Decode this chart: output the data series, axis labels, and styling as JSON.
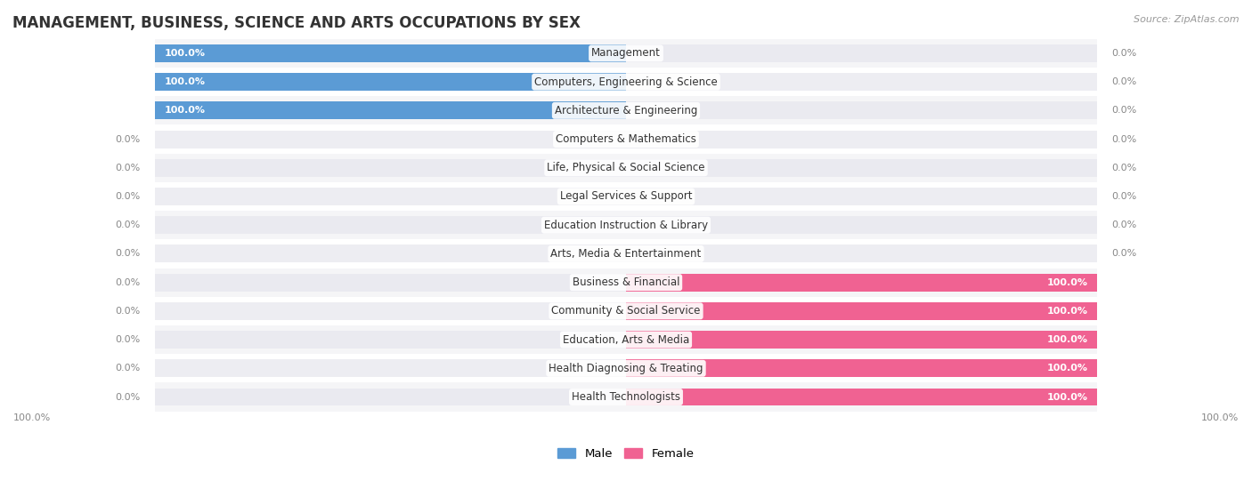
{
  "title": "MANAGEMENT, BUSINESS, SCIENCE AND ARTS OCCUPATIONS BY SEX",
  "source": "Source: ZipAtlas.com",
  "categories": [
    "Management",
    "Computers, Engineering & Science",
    "Architecture & Engineering",
    "Computers & Mathematics",
    "Life, Physical & Social Science",
    "Legal Services & Support",
    "Education Instruction & Library",
    "Arts, Media & Entertainment",
    "Business & Financial",
    "Community & Social Service",
    "Education, Arts & Media",
    "Health Diagnosing & Treating",
    "Health Technologists"
  ],
  "male_values": [
    100.0,
    100.0,
    100.0,
    0.0,
    0.0,
    0.0,
    0.0,
    0.0,
    0.0,
    0.0,
    0.0,
    0.0,
    0.0
  ],
  "female_values": [
    0.0,
    0.0,
    0.0,
    0.0,
    0.0,
    0.0,
    0.0,
    0.0,
    100.0,
    100.0,
    100.0,
    100.0,
    100.0
  ],
  "male_color": "#5b9bd5",
  "female_color": "#f06292",
  "bar_bg_color_even": "#eaeaf0",
  "bar_bg_color_odd": "#ededf2",
  "row_bg_even": "#f5f5f7",
  "row_bg_odd": "#ffffff",
  "title_fontsize": 12,
  "category_fontsize": 8.5,
  "legend_fontsize": 9.5,
  "value_fontsize": 8,
  "bar_height": 0.62,
  "max_val": 100.0
}
